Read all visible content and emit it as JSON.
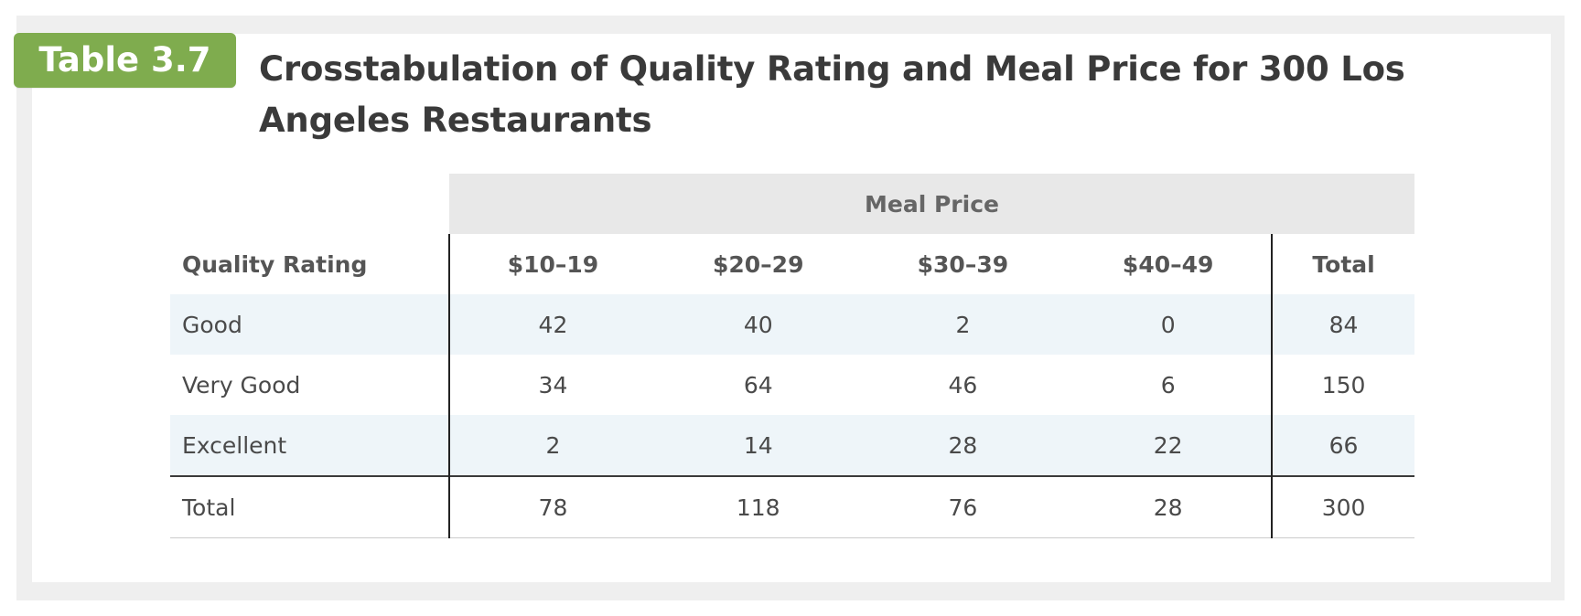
{
  "badge": "Table 3.7",
  "title": "Crosstabulation of Quality Rating and Meal Price for 300 Los Angeles Restaurants",
  "table": {
    "spanner": "Meal Price",
    "headers": [
      "Quality Rating",
      "$10–19",
      "$20–29",
      "$30–39",
      "$40–49",
      "Total"
    ],
    "rows": [
      [
        "Good",
        "42",
        "40",
        "2",
        "0",
        "84"
      ],
      [
        "Very Good",
        "34",
        "64",
        "46",
        "6",
        "150"
      ],
      [
        "Excellent",
        "2",
        "14",
        "28",
        "22",
        "66"
      ]
    ],
    "total_row": [
      "Total",
      "78",
      "118",
      "76",
      "28",
      "300"
    ]
  },
  "colors": {
    "badge": "#7fac4e",
    "spanner_bg": "#e8e8e8",
    "shaded_row": "#eef5f9",
    "frame": "#efefef"
  }
}
